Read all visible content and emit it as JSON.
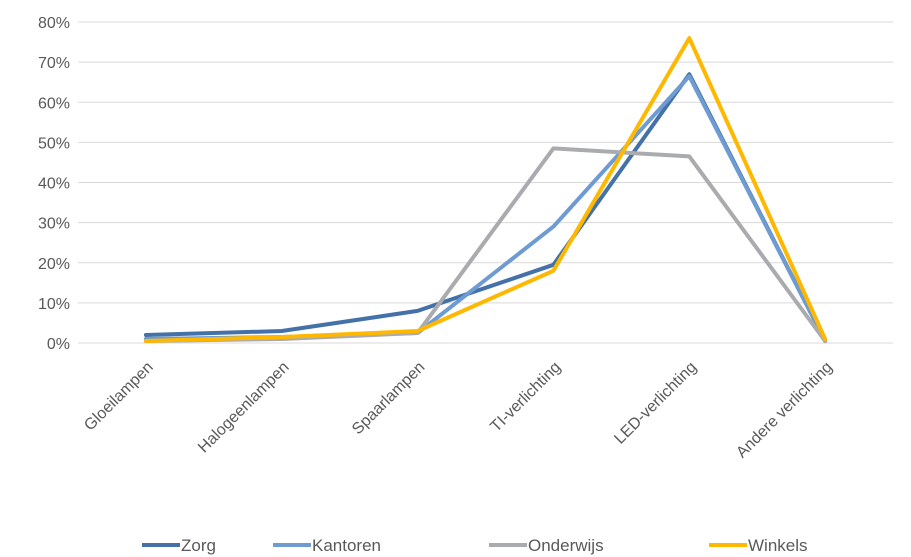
{
  "chart_data": {
    "type": "line",
    "title": "",
    "xlabel": "",
    "ylabel": "",
    "categories": [
      "Gloeilampen",
      "Halogeenlampen",
      "Spaarlampen",
      "TI-verlichting",
      "LED-verlichting",
      "Andere verlichting"
    ],
    "yticks": [
      "0%",
      "10%",
      "20%",
      "30%",
      "40%",
      "50%",
      "60%",
      "70%",
      "80%"
    ],
    "ylim": [
      0,
      80
    ],
    "grid": true,
    "legend_position": "bottom",
    "series": [
      {
        "name": "Zorg",
        "color": "#4472A8",
        "values": [
          2,
          3,
          8,
          19.5,
          67,
          0.5
        ]
      },
      {
        "name": "Kantoren",
        "color": "#6E9BD2",
        "values": [
          1,
          1.5,
          2.5,
          29,
          66.5,
          0.5
        ]
      },
      {
        "name": "Onderwijs",
        "color": "#A9ABAE",
        "values": [
          0.5,
          1,
          2.5,
          48.5,
          46.5,
          0.5
        ]
      },
      {
        "name": "Winkels",
        "color": "#FFB800",
        "values": [
          0.5,
          1.5,
          3,
          18,
          76,
          1
        ]
      }
    ]
  }
}
